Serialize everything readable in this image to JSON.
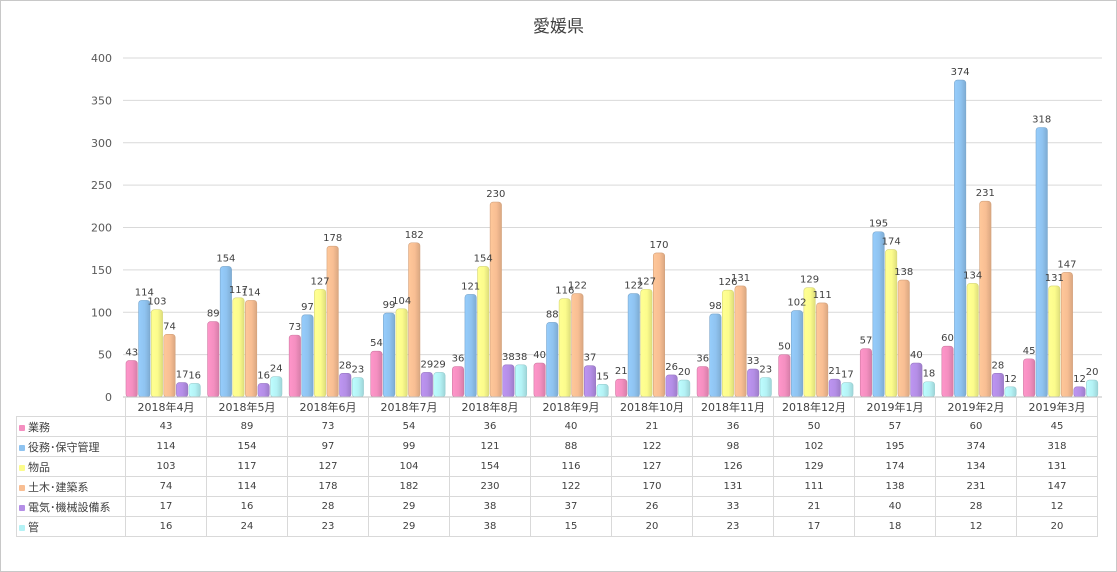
{
  "chart_data": {
    "type": "bar",
    "title": "愛媛県",
    "categories": [
      "2018年4月",
      "2018年5月",
      "2018年6月",
      "2018年7月",
      "2018年8月",
      "2018年9月",
      "2018年10月",
      "2018年11月",
      "2018年12月",
      "2019年1月",
      "2019年2月",
      "2019年3月"
    ],
    "ylim": [
      0,
      400
    ],
    "yticks": [
      "0",
      "50",
      "100",
      "150",
      "200",
      "250",
      "300",
      "350",
      "400"
    ],
    "grid": true,
    "legend": "table-bottom",
    "series": [
      {
        "name": "業務",
        "color": "#f48fc0",
        "values": [
          43,
          89,
          73,
          54,
          36,
          40,
          21,
          36,
          50,
          57,
          60,
          45
        ]
      },
      {
        "name": "役務･保守管理",
        "color": "#8fc3f0",
        "values": [
          114,
          154,
          97,
          99,
          121,
          88,
          122,
          98,
          102,
          195,
          374,
          318
        ]
      },
      {
        "name": "物品",
        "color": "#fcfc8c",
        "values": [
          103,
          117,
          127,
          104,
          154,
          116,
          127,
          126,
          129,
          174,
          134,
          131
        ]
      },
      {
        "name": "土木･建築系",
        "color": "#f8be93",
        "values": [
          74,
          114,
          178,
          182,
          230,
          122,
          170,
          131,
          111,
          138,
          231,
          147
        ]
      },
      {
        "name": "電気･機械設備系",
        "color": "#b48ee6",
        "values": [
          17,
          16,
          28,
          29,
          38,
          37,
          26,
          33,
          21,
          40,
          28,
          12
        ]
      },
      {
        "name": "管",
        "color": "#b4f2f5",
        "values": [
          16,
          24,
          23,
          29,
          38,
          15,
          20,
          23,
          17,
          18,
          12,
          20
        ]
      }
    ]
  }
}
